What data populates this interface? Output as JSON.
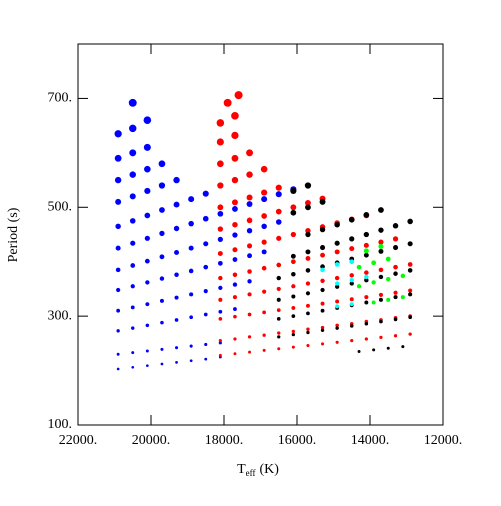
{
  "chart_data": {
    "type": "scatter",
    "xlabel": {
      "main": "T",
      "sub": "eff",
      "unit": "(K)"
    },
    "ylabel": "Period (s)",
    "xlim": [
      22000,
      12000
    ],
    "ylim": [
      100,
      800
    ],
    "xticks": [
      {
        "value": 22000,
        "label": "22000."
      },
      {
        "value": 20000,
        "label": "20000."
      },
      {
        "value": 18000,
        "label": "18000."
      },
      {
        "value": 16000,
        "label": "16000."
      },
      {
        "value": 14000,
        "label": "14000."
      },
      {
        "value": 12000,
        "label": "12000."
      }
    ],
    "yticks": [
      {
        "value": 100,
        "label": "100."
      },
      {
        "value": 300,
        "label": "300."
      },
      {
        "value": 500,
        "label": "500."
      },
      {
        "value": 700,
        "label": "700."
      }
    ],
    "series": [
      {
        "color": "#0000ff",
        "x": [
          20900,
          20500,
          20100,
          19700,
          19300,
          18900,
          18500,
          18100,
          20900,
          20500,
          20100,
          19700,
          19300,
          18900,
          18500,
          18100,
          20900,
          20500,
          20100,
          19700,
          19300,
          18900,
          18500,
          18100,
          17700,
          20900,
          20500,
          20100,
          19700,
          19300,
          18900,
          18500,
          18100,
          17700,
          17300,
          20900,
          20500,
          20100,
          19700,
          19300,
          18900,
          18500,
          18100,
          17700,
          17300,
          16900,
          20900,
          20500,
          20100,
          19700,
          19300,
          18900,
          18500,
          18100,
          17700,
          17300,
          16900,
          16500,
          20900,
          20500,
          20100,
          19700,
          19300,
          18900,
          18500,
          18100,
          17700,
          17300,
          16900,
          16500,
          16100,
          20900,
          20500,
          20100,
          19700,
          19300,
          18900,
          18500,
          20900,
          20500,
          20100,
          19700,
          19300,
          20900,
          20500,
          20100,
          19700,
          20900,
          20500,
          20100,
          20900,
          20500,
          20100,
          20500
        ],
        "values": [
          203,
          206,
          209,
          212,
          215,
          218,
          221,
          225,
          230,
          233,
          236,
          239,
          242,
          245,
          248,
          251,
          273,
          278,
          283,
          288,
          293,
          298,
          303,
          308,
          313,
          310,
          316,
          322,
          328,
          334,
          340,
          346,
          352,
          358,
          364,
          348,
          355,
          362,
          369,
          376,
          383,
          390,
          397,
          404,
          411,
          418,
          385,
          393,
          401,
          409,
          417,
          425,
          433,
          441,
          449,
          457,
          465,
          473,
          425,
          434,
          443,
          452,
          461,
          470,
          479,
          488,
          497,
          506,
          515,
          524,
          533,
          465,
          475,
          485,
          495,
          505,
          515,
          525,
          510,
          520,
          530,
          540,
          550,
          550,
          560,
          570,
          580,
          590,
          600,
          610,
          635,
          645,
          660,
          692
        ]
      },
      {
        "color": "#ff0000",
        "x": [
          18100,
          17700,
          17300,
          16900,
          16500,
          16100,
          15700,
          15300,
          14900,
          14500,
          14100,
          13700,
          13300,
          12900,
          18100,
          17700,
          17300,
          16900,
          16500,
          16100,
          15700,
          15300,
          14900,
          14500,
          14100,
          13700,
          13300,
          12900,
          18100,
          17700,
          17300,
          16900,
          16500,
          16100,
          15700,
          15300,
          14900,
          14500,
          14100,
          13700,
          13300,
          12900,
          18100,
          17700,
          17300,
          16900,
          16500,
          16100,
          15700,
          15300,
          14900,
          14500,
          14100,
          13700,
          13300,
          12900,
          18100,
          17700,
          17300,
          16900,
          16500,
          16100,
          15700,
          15300,
          14900,
          14500,
          14100,
          13700,
          13300,
          18100,
          17700,
          17300,
          16900,
          16500,
          16100,
          15700,
          15300,
          14900,
          14500,
          14100,
          18100,
          17700,
          17300,
          16900,
          16500,
          16100,
          15700,
          15300,
          18100,
          17700,
          17300,
          16900,
          16500,
          18100,
          17700,
          17300,
          16900,
          18100,
          17700,
          17300,
          18100,
          17700,
          18100,
          17700,
          17900,
          17600
        ],
        "values": [
          228,
          231,
          234,
          237,
          240,
          243,
          246,
          249,
          252,
          255,
          258,
          261,
          264,
          267,
          255,
          258,
          262,
          265,
          269,
          272,
          276,
          279,
          283,
          286,
          290,
          293,
          297,
          300,
          295,
          299,
          303,
          307,
          311,
          315,
          319,
          323,
          327,
          331,
          335,
          339,
          343,
          347,
          330,
          335,
          340,
          345,
          350,
          355,
          360,
          365,
          370,
          375,
          380,
          385,
          390,
          395,
          370,
          376,
          382,
          388,
          394,
          400,
          406,
          412,
          418,
          424,
          430,
          436,
          442,
          415,
          422,
          429,
          436,
          443,
          450,
          457,
          464,
          471,
          478,
          485,
          460,
          468,
          476,
          484,
          492,
          500,
          508,
          516,
          500,
          509,
          518,
          527,
          536,
          540,
          550,
          560,
          570,
          580,
          590,
          600,
          620,
          632,
          655,
          668,
          692,
          706
        ]
      },
      {
        "color": "#000000",
        "x": [
          16500,
          16100,
          15700,
          15300,
          14900,
          14500,
          14100,
          13700,
          13300,
          12900,
          16500,
          16100,
          15700,
          15300,
          14900,
          14500,
          14100,
          13700,
          13300,
          12900,
          16500,
          16100,
          15700,
          15300,
          14900,
          14500,
          14100,
          13700,
          13300,
          12900,
          16500,
          16100,
          15700,
          15300,
          14900,
          14500,
          14100,
          13700,
          13300,
          12900,
          16100,
          15700,
          15300,
          14900,
          14500,
          14100,
          13700,
          13300,
          12900,
          15700,
          15300,
          14900,
          14500,
          14100,
          13700,
          16100,
          15700,
          15300,
          16100,
          15700,
          14300,
          13900,
          13500,
          13100
        ],
        "values": [
          262,
          266,
          270,
          274,
          278,
          282,
          286,
          290,
          294,
          298,
          295,
          300,
          305,
          310,
          315,
          320,
          325,
          330,
          335,
          340,
          330,
          336,
          342,
          348,
          354,
          360,
          366,
          372,
          378,
          384,
          370,
          377,
          384,
          391,
          398,
          405,
          412,
          419,
          426,
          433,
          410,
          418,
          426,
          434,
          442,
          450,
          458,
          466,
          474,
          450,
          459,
          468,
          477,
          486,
          495,
          490,
          500,
          510,
          530,
          540,
          235,
          238,
          241,
          244
        ]
      },
      {
        "color": "#00ffff",
        "x": [
          14900,
          14500,
          14900,
          14500,
          14100,
          15300,
          14900,
          14500
        ],
        "values": [
          318,
          322,
          360,
          366,
          372,
          385,
          395,
          400
        ]
      },
      {
        "color": "#00ff00",
        "x": [
          13900,
          13500,
          13100,
          14300,
          13900,
          13500,
          13100,
          14300,
          13900,
          13500,
          14100,
          13700
        ],
        "values": [
          325,
          330,
          335,
          355,
          362,
          368,
          374,
          390,
          398,
          405,
          420,
          428
        ]
      }
    ]
  }
}
